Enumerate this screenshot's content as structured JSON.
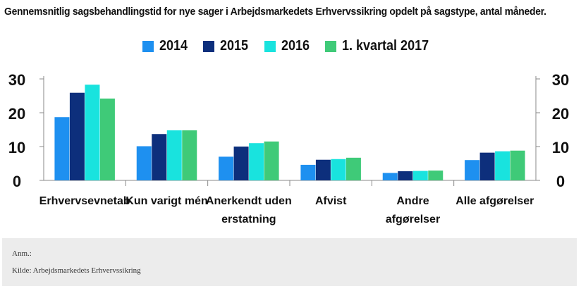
{
  "title": "Gennemsnitlig sagsbehandlingstid for nye sager i Arbejdsmarkedets Erhvervssikring opdelt på sagstype, antal måneder.",
  "footer": {
    "note": "Anm.:",
    "source": "Kilde: Arbejdsmarkedets Erhvervssikring"
  },
  "chart_data": {
    "type": "bar",
    "title": "Gennemsnitlig sagsbehandlingstid for nye sager i Arbejdsmarkedets Erhvervssikring opdelt på sagstype, antal måneder.",
    "categories": [
      [
        "Erhvervsevnetab"
      ],
      [
        "Kun varigt mén"
      ],
      [
        "Anerkendt uden",
        "erstatning"
      ],
      [
        "Afvist"
      ],
      [
        "Andre",
        "afgørelser"
      ],
      [
        "Alle afgørelser"
      ]
    ],
    "series": [
      {
        "name": "2014",
        "color": "#1e90f0",
        "values": [
          18.7,
          10.1,
          7.0,
          4.6,
          2.2,
          6.0
        ]
      },
      {
        "name": "2015",
        "color": "#0d2f7c",
        "values": [
          25.9,
          13.7,
          10.0,
          6.1,
          2.7,
          8.2
        ]
      },
      {
        "name": "2016",
        "color": "#19e3de",
        "values": [
          28.3,
          14.8,
          11.0,
          6.3,
          2.8,
          8.6
        ]
      },
      {
        "name": "1. kvartal 2017",
        "color": "#3fca78",
        "values": [
          24.2,
          14.8,
          11.5,
          6.7,
          2.9,
          8.8
        ]
      }
    ],
    "ylim": [
      0,
      30
    ],
    "yticks": [
      0,
      10,
      20,
      30
    ],
    "y_axis_both_sides": true,
    "grid": false,
    "legend_position": "top-center",
    "xlabel": "",
    "ylabel": ""
  }
}
